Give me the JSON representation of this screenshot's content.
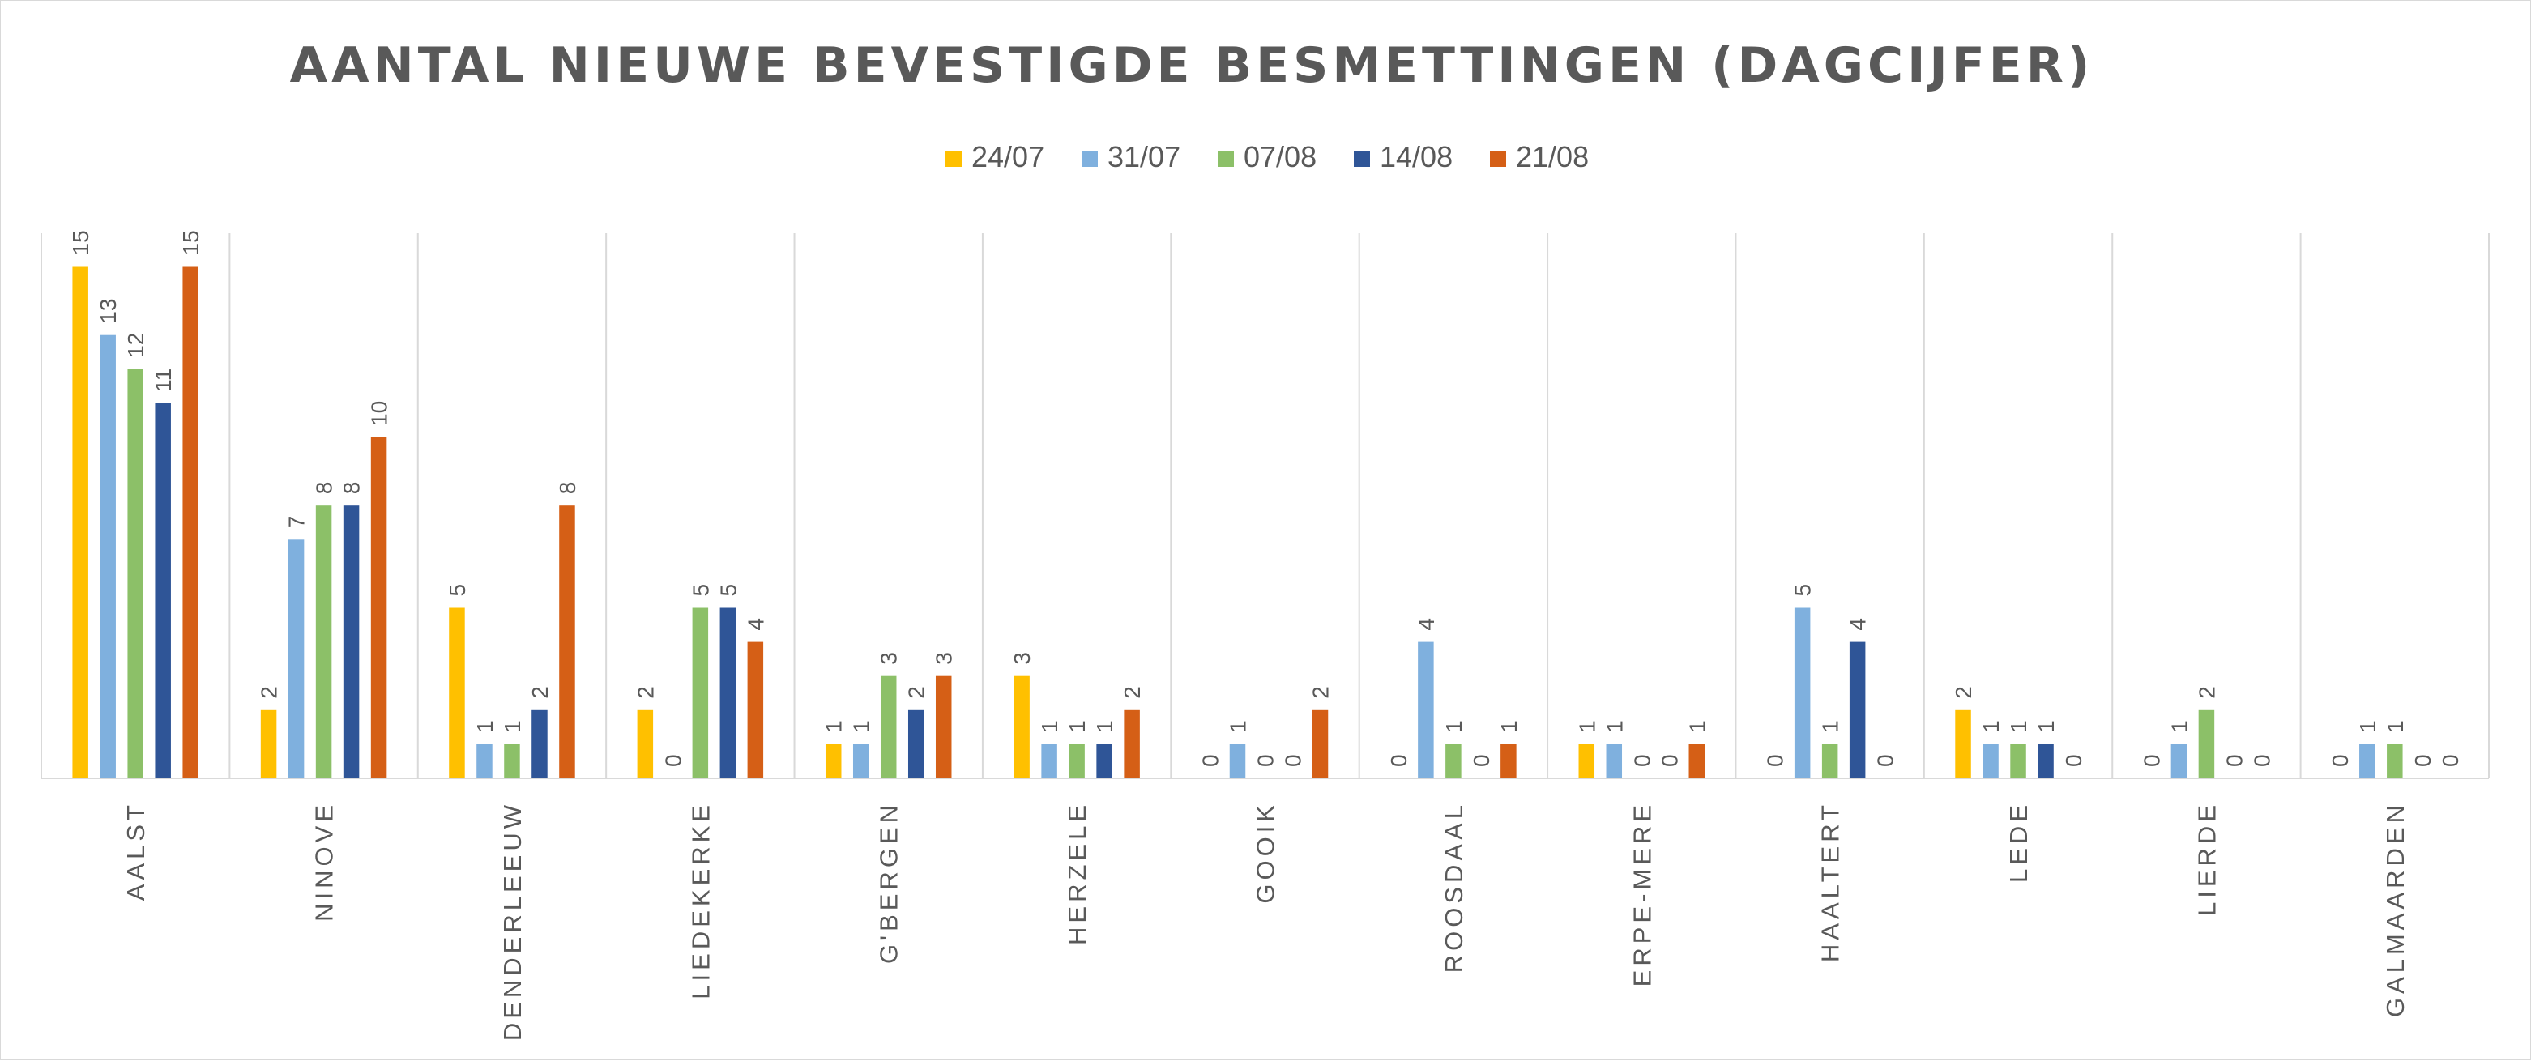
{
  "chart_data": {
    "type": "bar",
    "title": "AANTAL NIEUWE BEVESTIGDE BESMETTINGEN (DAGCIJFER)",
    "xlabel": "",
    "ylabel": "",
    "ylim": [
      0,
      16
    ],
    "grid": "vertical category separators",
    "legend_position": "top-center",
    "categories": [
      "AALST",
      "NINOVE",
      "DENDERLEEUW",
      "LIEDEKERKE",
      "G'BERGEN",
      "HERZELE",
      "GOOIK",
      "ROOSDAAL",
      "ERPE-MERE",
      "HAALTERT",
      "LEDE",
      "LIERDE",
      "GALMAARDEN"
    ],
    "series": [
      {
        "name": "24/07",
        "color": "#FFC000",
        "values": [
          15,
          2,
          5,
          2,
          1,
          3,
          0,
          0,
          1,
          0,
          2,
          0,
          0
        ]
      },
      {
        "name": "31/07",
        "color": "#7FB0DE",
        "values": [
          13,
          7,
          1,
          0,
          1,
          1,
          1,
          4,
          1,
          5,
          1,
          1,
          1
        ]
      },
      {
        "name": "07/08",
        "color": "#8CC068",
        "values": [
          12,
          8,
          1,
          5,
          3,
          1,
          0,
          1,
          0,
          1,
          1,
          2,
          1
        ]
      },
      {
        "name": "14/08",
        "color": "#2F5597",
        "values": [
          11,
          8,
          2,
          5,
          2,
          1,
          0,
          0,
          0,
          4,
          1,
          0,
          0
        ]
      },
      {
        "name": "21/08",
        "color": "#D55F16",
        "values": [
          15,
          10,
          8,
          4,
          3,
          2,
          2,
          1,
          1,
          0,
          0,
          0,
          0
        ]
      }
    ]
  }
}
